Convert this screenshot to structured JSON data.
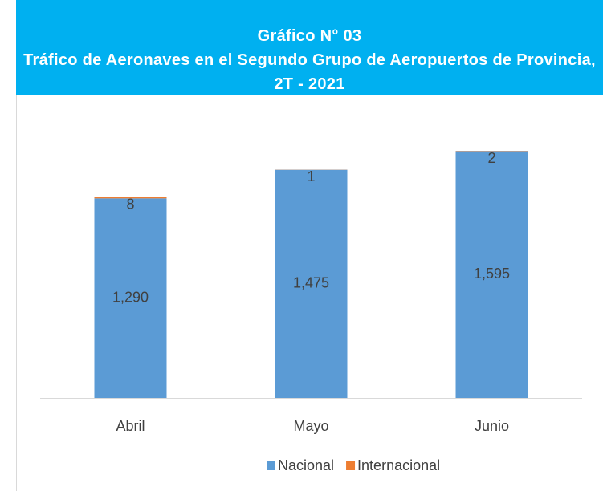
{
  "chart_data": {
    "type": "stacked_bar",
    "title": "Gráfico N° 03",
    "subtitle": "Tráfico de Aeronaves en el Segundo Grupo de Aeropuertos de Provincia, 2T - 2021",
    "categories": [
      "Abril",
      "Mayo",
      "Junio"
    ],
    "series": [
      {
        "name": "Nacional",
        "color": "#5b9bd5",
        "values": [
          1290,
          1475,
          1595
        ],
        "value_labels": [
          "1,290",
          "1,475",
          "1,595"
        ]
      },
      {
        "name": "Internacional",
        "color": "#ed7d31",
        "values": [
          8,
          1,
          2
        ]
      }
    ],
    "ylim": [
      0,
      1800
    ],
    "legend": "bottom"
  }
}
